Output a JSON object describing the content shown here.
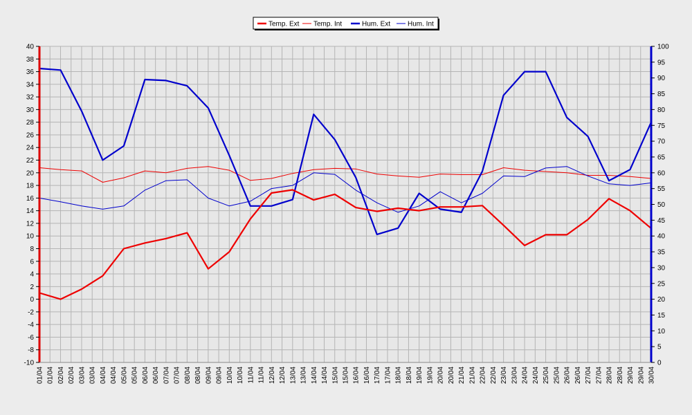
{
  "chart_data": {
    "type": "line",
    "x": [
      "01/04",
      "01/04",
      "02/04",
      "02/04",
      "03/04",
      "03/04",
      "04/04",
      "04/04",
      "05/04",
      "05/04",
      "06/04",
      "06/04",
      "07/04",
      "07/04",
      "08/04",
      "08/04",
      "09/04",
      "09/04",
      "10/04",
      "10/04",
      "11/04",
      "11/04",
      "12/04",
      "12/04",
      "13/04",
      "13/04",
      "14/04",
      "14/04",
      "15/04",
      "15/04",
      "16/04",
      "16/04",
      "17/04",
      "17/04",
      "18/04",
      "18/04",
      "19/04",
      "19/04",
      "20/04",
      "20/04",
      "21/04",
      "21/04",
      "22/04",
      "22/04",
      "23/04",
      "23/04",
      "24/04",
      "24/04",
      "25/04",
      "25/04",
      "26/04",
      "26/04",
      "27/04",
      "27/04",
      "28/04",
      "28/04",
      "29/04",
      "29/04",
      "30/04"
    ],
    "left_axis": {
      "min": -10,
      "max": 40,
      "step": 2
    },
    "right_axis": {
      "min": 0,
      "max": 100,
      "step": 5
    },
    "grid": true,
    "legend_position": "top-center",
    "series": [
      {
        "name": "Temp. Ext",
        "axis": "left",
        "color": "#ee0000",
        "width": "thick",
        "points": [
          [
            0,
            1.0
          ],
          [
            1,
            0.0
          ],
          [
            2,
            1.6
          ],
          [
            3,
            3.7
          ],
          [
            4,
            8.0
          ],
          [
            5,
            8.9
          ],
          [
            6,
            9.6
          ],
          [
            7,
            10.5
          ],
          [
            8,
            4.8
          ],
          [
            9,
            7.5
          ],
          [
            10,
            12.7
          ],
          [
            11,
            16.8
          ],
          [
            12,
            17.3
          ],
          [
            13,
            15.7
          ],
          [
            14,
            16.6
          ],
          [
            15,
            14.5
          ],
          [
            16,
            13.9
          ],
          [
            17,
            14.4
          ],
          [
            18,
            14.0
          ],
          [
            19,
            14.6
          ],
          [
            20,
            14.6
          ],
          [
            21,
            14.8
          ],
          [
            22,
            11.7
          ],
          [
            23,
            8.5
          ],
          [
            24,
            10.2
          ],
          [
            25,
            10.2
          ],
          [
            26,
            12.6
          ],
          [
            27,
            15.9
          ],
          [
            28,
            14.0
          ],
          [
            29,
            11.2
          ]
        ]
      },
      {
        "name": "Temp. Int",
        "axis": "left",
        "color": "#ee0000",
        "width": "thin",
        "points": [
          [
            0,
            20.8
          ],
          [
            1,
            20.5
          ],
          [
            2,
            20.3
          ],
          [
            3,
            18.5
          ],
          [
            4,
            19.2
          ],
          [
            5,
            20.3
          ],
          [
            6,
            20.0
          ],
          [
            7,
            20.7
          ],
          [
            8,
            21.0
          ],
          [
            9,
            20.4
          ],
          [
            10,
            18.8
          ],
          [
            11,
            19.1
          ],
          [
            12,
            19.9
          ],
          [
            13,
            20.5
          ],
          [
            14,
            20.7
          ],
          [
            15,
            20.6
          ],
          [
            16,
            19.8
          ],
          [
            17,
            19.5
          ],
          [
            18,
            19.3
          ],
          [
            19,
            19.8
          ],
          [
            20,
            19.7
          ],
          [
            21,
            19.7
          ],
          [
            22,
            20.8
          ],
          [
            23,
            20.4
          ],
          [
            24,
            20.2
          ],
          [
            25,
            20.0
          ],
          [
            26,
            19.6
          ],
          [
            27,
            19.6
          ],
          [
            28,
            19.4
          ],
          [
            29,
            19.1
          ]
        ]
      },
      {
        "name": "Hum. Ext",
        "axis": "right",
        "color": "#0000cc",
        "width": "thick",
        "points": [
          [
            0,
            93
          ],
          [
            1,
            92.5
          ],
          [
            2,
            79.5
          ],
          [
            3,
            64
          ],
          [
            4,
            68.5
          ],
          [
            5,
            89.5
          ],
          [
            6,
            89.2
          ],
          [
            7,
            87.5
          ],
          [
            8,
            80.5
          ],
          [
            9,
            65.5
          ],
          [
            10,
            49.5
          ],
          [
            11,
            49.5
          ],
          [
            12,
            51.5
          ],
          [
            13,
            78.5
          ],
          [
            14,
            70.5
          ],
          [
            15,
            58.5
          ],
          [
            16,
            40.5
          ],
          [
            17,
            42.5
          ],
          [
            18,
            53.5
          ],
          [
            19,
            48.5
          ],
          [
            20,
            47.5
          ],
          [
            21,
            60.5
          ],
          [
            22,
            84.5
          ],
          [
            23,
            92
          ],
          [
            24,
            92
          ],
          [
            25,
            77.5
          ],
          [
            26,
            71.5
          ],
          [
            27,
            57.5
          ],
          [
            28,
            61
          ],
          [
            29,
            76
          ]
        ]
      },
      {
        "name": "Hum. Int",
        "axis": "right",
        "color": "#0000cc",
        "width": "thin",
        "points": [
          [
            0,
            52
          ],
          [
            1,
            50.8
          ],
          [
            2,
            49.5
          ],
          [
            3,
            48.5
          ],
          [
            4,
            49.5
          ],
          [
            5,
            54.5
          ],
          [
            6,
            57.5
          ],
          [
            7,
            57.8
          ],
          [
            8,
            52
          ],
          [
            9,
            49.5
          ],
          [
            10,
            51
          ],
          [
            11,
            55
          ],
          [
            12,
            56
          ],
          [
            13,
            60
          ],
          [
            14,
            59.5
          ],
          [
            15,
            54.5
          ],
          [
            16,
            50.5
          ],
          [
            17,
            47.5
          ],
          [
            18,
            49.5
          ],
          [
            19,
            54
          ],
          [
            20,
            50.5
          ],
          [
            21,
            53.5
          ],
          [
            22,
            59
          ],
          [
            23,
            58.8
          ],
          [
            24,
            61.5
          ],
          [
            25,
            62
          ],
          [
            26,
            59
          ],
          [
            27,
            56.5
          ],
          [
            28,
            56
          ],
          [
            29,
            56.8
          ]
        ]
      }
    ]
  }
}
